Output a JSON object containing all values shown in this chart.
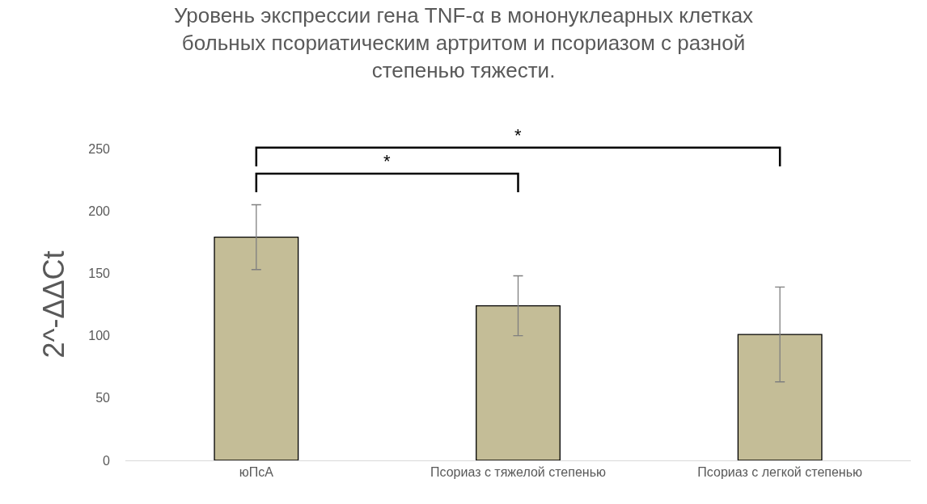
{
  "chart_data": {
    "type": "bar",
    "title": "Уровень экспрессии гена TNF-α в мононуклеарных клетках больных псориатическим артритом и псориазом с разной степенью тяжести.",
    "ylabel": "2^-ΔΔCt",
    "categories": [
      "юПсА",
      "Псориаз с тяжелой степенью",
      "Псориаз с легкой степенью"
    ],
    "values": [
      179,
      124,
      101
    ],
    "errors": [
      26,
      24,
      38
    ],
    "color": "#c4bd97",
    "ylim": [
      0,
      250
    ],
    "yticks": [
      0,
      50,
      100,
      150,
      200,
      250
    ],
    "annotations": [
      "*",
      "*"
    ],
    "grid": false,
    "legend": false
  }
}
